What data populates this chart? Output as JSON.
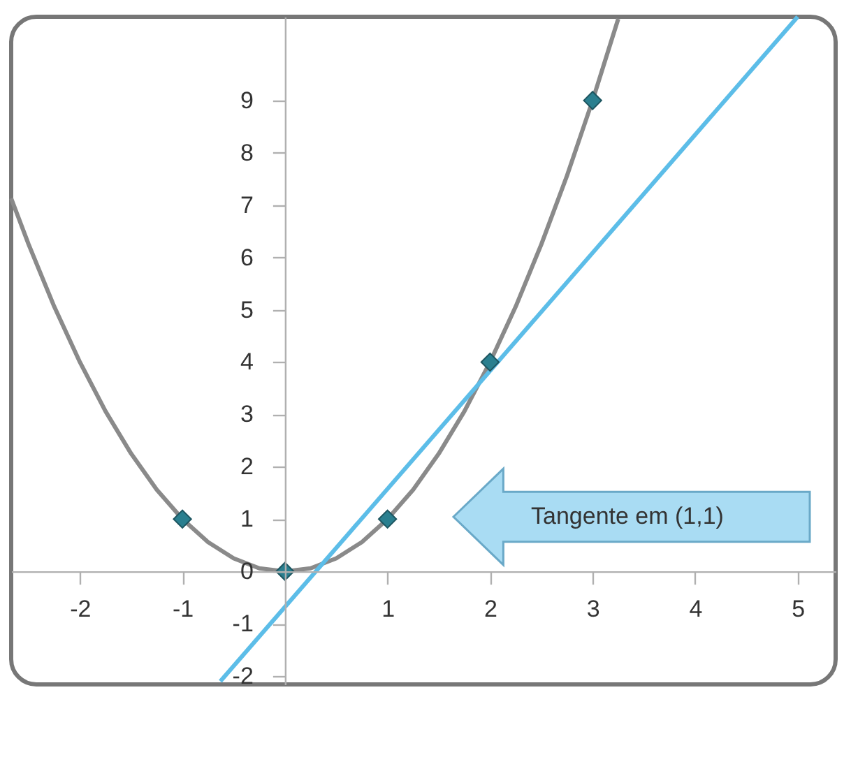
{
  "chart_data": {
    "type": "line",
    "xlim": [
      -2.67,
      5.37
    ],
    "ylim": [
      -2.16,
      10.6
    ],
    "xticks": [
      -2,
      -1,
      1,
      2,
      3,
      4,
      5
    ],
    "yticks": [
      -2,
      -1,
      0,
      1,
      2,
      3,
      4,
      5,
      6,
      7,
      8,
      9
    ],
    "grid": false,
    "series": [
      {
        "color": "#8a8a8a",
        "line_style": "solid",
        "marker": "none",
        "x": [
          -2.67,
          -2.5,
          -2.25,
          -2,
          -1.75,
          -1.5,
          -1.25,
          -1,
          -0.75,
          -0.5,
          -0.25,
          0,
          0.25,
          0.5,
          0.75,
          1,
          1.25,
          1.5,
          1.75,
          2,
          2.25,
          2.5,
          2.75,
          3,
          3.25
        ],
        "values": [
          7.13,
          6.25,
          5.06,
          4,
          3.06,
          2.25,
          1.56,
          1,
          0.56,
          0.25,
          0.06,
          0,
          0.06,
          0.25,
          0.56,
          1,
          1.56,
          2.25,
          3.06,
          4,
          5.06,
          6.25,
          7.56,
          9,
          10.56
        ]
      },
      {
        "color": "#5cbde8",
        "line_style": "solid",
        "marker": "none",
        "x": [
          -0.63,
          5.0
        ],
        "values": [
          -2.1,
          10.6
        ]
      },
      {
        "type": "scatter",
        "color": "#2a7f8f",
        "marker": "diamond",
        "x": [
          -1,
          0,
          1,
          2,
          3
        ],
        "values": [
          1,
          0,
          1,
          4,
          9
        ]
      }
    ],
    "annotations": [
      "Tangente em (1,1)"
    ]
  }
}
